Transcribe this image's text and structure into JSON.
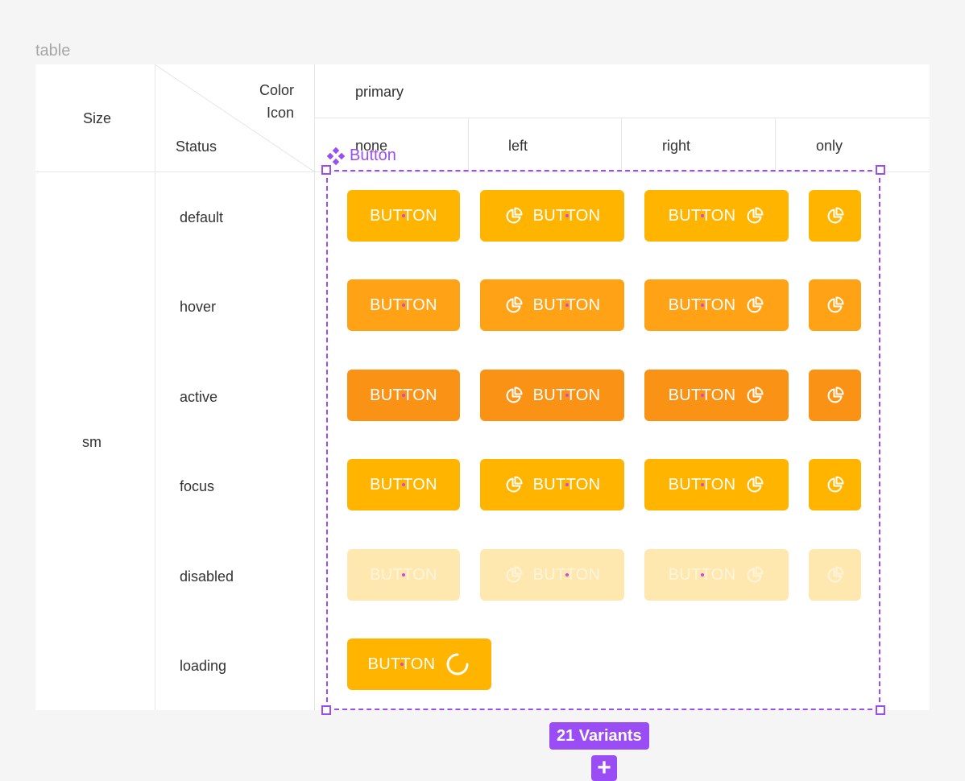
{
  "frame": {
    "label": "table"
  },
  "header": {
    "size_label": "Size",
    "color_label": "Color",
    "icon_label": "Icon",
    "status_label": "Status",
    "color_value": "primary",
    "icon_columns": [
      "none",
      "left",
      "right",
      "only"
    ]
  },
  "size": {
    "value": "sm"
  },
  "statuses": [
    "default",
    "hover",
    "active",
    "focus",
    "disabled",
    "loading"
  ],
  "button_label": "BUTTON",
  "component": {
    "name": "Button",
    "variants_label": "21 Variants"
  },
  "colors": {
    "default": "#ffb400",
    "hover": "#ffa216",
    "active": "#fa9315",
    "focus": "#ffb400",
    "disabled": "#ffe8b0",
    "loading": "#ffb400",
    "selection": "#9b4df5"
  },
  "icons": {
    "chart": "pie-chart-icon",
    "spinner": "spinner-icon",
    "component": "component-icon"
  }
}
